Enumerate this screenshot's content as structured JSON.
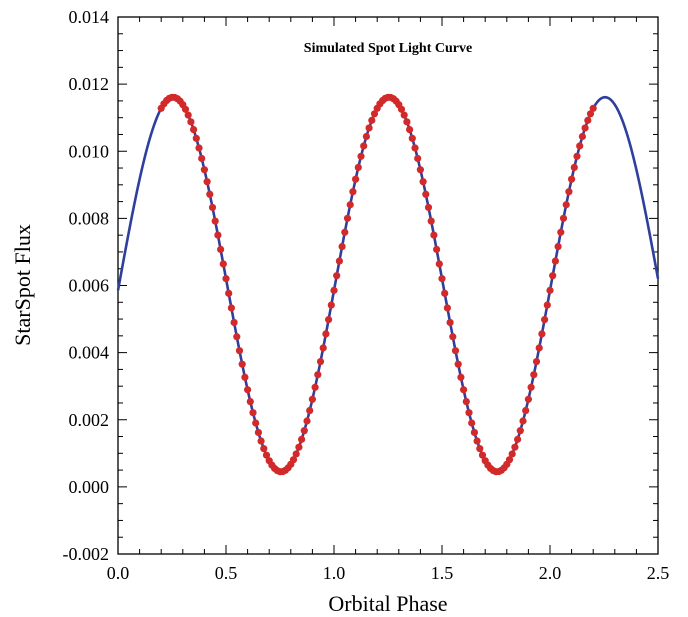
{
  "chart_data": {
    "type": "line",
    "title": "Simulated Spot Light Curve",
    "xlabel": "Orbital Phase",
    "ylabel": "StarSpot Flux",
    "xlim": [
      0.0,
      2.5
    ],
    "ylim": [
      -0.002,
      0.014
    ],
    "x_ticks": [
      "0.0",
      "0.5",
      "1.0",
      "1.5",
      "2.0",
      "2.5"
    ],
    "y_ticks": [
      "-0.002",
      "0.000",
      "0.002",
      "0.004",
      "0.006",
      "0.008",
      "0.010",
      "0.012",
      "0.014"
    ],
    "grid": false,
    "series": [
      {
        "kind": "line",
        "color": "#2e3f9e",
        "model": {
          "function": "offset + amplitude*cos(2*pi*(x - peak_phase))",
          "offset": 0.00603,
          "amplitude": 0.00558,
          "peak_phase": 0.255
        },
        "x_range": [
          0.0,
          2.5
        ]
      },
      {
        "kind": "scatter",
        "color": "#d22a2a",
        "x_start": 0.2,
        "x_end": 2.2,
        "x_step": 0.0125
      }
    ]
  }
}
